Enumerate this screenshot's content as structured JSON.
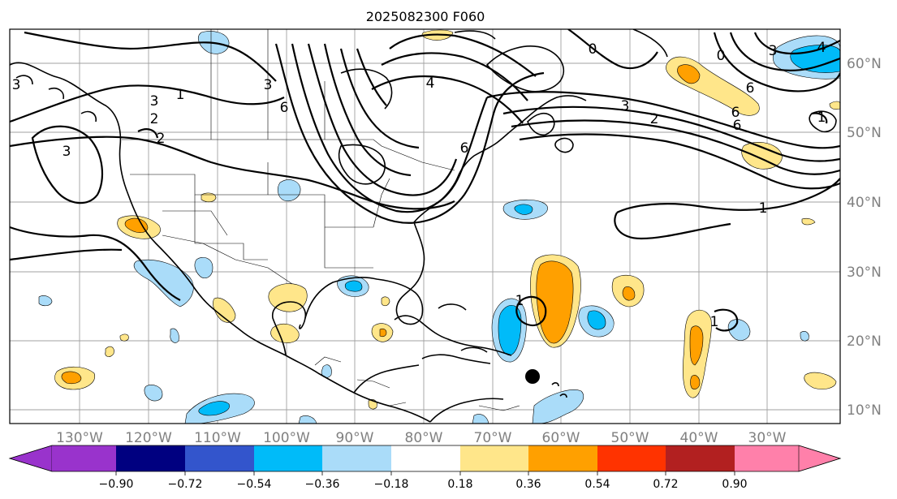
{
  "title": "2025082300 F060",
  "lat_labels": [
    "60°N",
    "50°N",
    "40°N",
    "30°N",
    "20°N",
    "10°N"
  ],
  "lon_labels": [
    "130°W",
    "120°W",
    "110°W",
    "100°W",
    "90°W",
    "80°W",
    "70°W",
    "60°W",
    "50°W",
    "40°W",
    "30°W"
  ],
  "colorbar": {
    "tick_labels": [
      "−0.90",
      "−0.72",
      "−0.54",
      "−0.36",
      "−0.18",
      "0.18",
      "0.36",
      "0.54",
      "0.72",
      "0.90"
    ],
    "colors": {
      "under": "#9933cc",
      "bin1": "#000080",
      "bin2": "#3355cc",
      "bin3": "#00bbf9",
      "bin4": "#aadcf9",
      "neutral": "#ffffff",
      "bin6": "#ffe68a",
      "bin7": "#ffa000",
      "bin8": "#ff3300",
      "bin9": "#b22020",
      "over": "#ff80aa"
    }
  },
  "contour_labels": [
    "1",
    "3",
    "2",
    "2",
    "3",
    "3",
    "3",
    "6",
    "6",
    "4",
    "1",
    "3",
    "2",
    "1",
    "6",
    "6",
    "3",
    "4",
    "6",
    "0",
    "0",
    "1",
    "1"
  ],
  "marker": "storm-center-dot"
}
